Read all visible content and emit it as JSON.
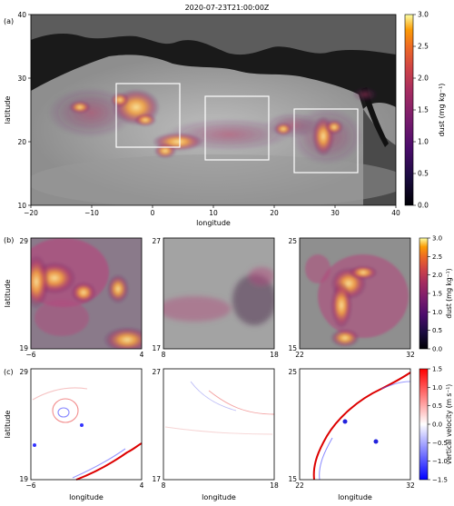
{
  "figure_title": "2020-07-23T21:00:00Z",
  "chart_data": [
    {
      "panel": "(a)",
      "type": "heatmap",
      "title": "2020-07-23T21:00:00Z",
      "xlabel": "longitude",
      "ylabel": "latitude",
      "xlim": [
        -20,
        40
      ],
      "ylim": [
        10,
        40
      ],
      "xticks": [
        -20,
        -10,
        0,
        10,
        20,
        30,
        40
      ],
      "yticks": [
        10,
        20,
        30,
        40
      ],
      "colorbar": {
        "label": "dust (mg kg⁻¹)",
        "range": [
          0,
          3
        ],
        "ticks": [
          "0.0",
          "0.5",
          "1.0",
          "1.5",
          "2.0",
          "2.5",
          "3.0"
        ],
        "colormap": "inferno"
      },
      "subregion_boxes": [
        {
          "lon": [
            -6,
            4
          ],
          "lat": [
            19,
            29
          ]
        },
        {
          "lon": [
            8,
            18
          ],
          "lat": [
            17,
            27
          ]
        },
        {
          "lon": [
            22,
            32
          ],
          "lat": [
            15,
            25
          ]
        }
      ],
      "dust_hotspots": [
        {
          "lon": -3,
          "lat": 24,
          "value": 3.0
        },
        {
          "lon": 2,
          "lat": 20.5,
          "value": 3.0
        },
        {
          "lon": 27,
          "lat": 21,
          "value": 3.0
        },
        {
          "lon": 20,
          "lat": 22,
          "value": 1.8
        },
        {
          "lon": 13,
          "lat": 21.5,
          "value": 0.8
        }
      ]
    },
    {
      "panel": "(b)",
      "type": "heatmap",
      "ylabel": "latitude",
      "colorbar": {
        "label": "dust (mg kg⁻¹)",
        "range": [
          0,
          3
        ],
        "ticks": [
          "0.0",
          "0.5",
          "1.0",
          "1.5",
          "2.0",
          "2.5",
          "3.0"
        ]
      },
      "subplots": [
        {
          "xlim": [
            -6,
            4
          ],
          "ylim": [
            19,
            29
          ],
          "xtick_labels": [
            "-6",
            "4"
          ],
          "ytick_labels": [
            "19",
            "29"
          ]
        },
        {
          "xlim": [
            8,
            18
          ],
          "ylim": [
            17,
            27
          ],
          "xtick_labels": [
            "8",
            "18"
          ],
          "ytick_labels": [
            "17",
            "27"
          ]
        },
        {
          "xlim": [
            22,
            32
          ],
          "ylim": [
            15,
            25
          ],
          "xtick_labels": [
            "22",
            "32"
          ],
          "ytick_labels": [
            "15",
            "25"
          ]
        }
      ]
    },
    {
      "panel": "(c)",
      "type": "heatmap",
      "xlabel": "longitude",
      "ylabel": "latitude",
      "colorbar": {
        "label": "vertical velocity (m s⁻¹)",
        "range": [
          -1.5,
          1.5
        ],
        "ticks": [
          "1.5",
          "1.0",
          "0.5",
          "0.0",
          "−0.5",
          "−1.0",
          "−1.5"
        ],
        "colormap": "bwr"
      },
      "subplots": [
        {
          "xlim": [
            -6,
            4
          ],
          "ylim": [
            19,
            29
          ],
          "xtick_labels": [
            "-6",
            "4"
          ],
          "ytick_labels": [
            "19",
            "29"
          ]
        },
        {
          "xlim": [
            8,
            18
          ],
          "ylim": [
            17,
            27
          ],
          "xtick_labels": [
            "8",
            "18"
          ],
          "ytick_labels": [
            "17",
            "27"
          ]
        },
        {
          "xlim": [
            22,
            32
          ],
          "ylim": [
            15,
            25
          ],
          "xtick_labels": [
            "22",
            "32"
          ],
          "ytick_labels": [
            "15",
            "25"
          ]
        }
      ]
    }
  ]
}
